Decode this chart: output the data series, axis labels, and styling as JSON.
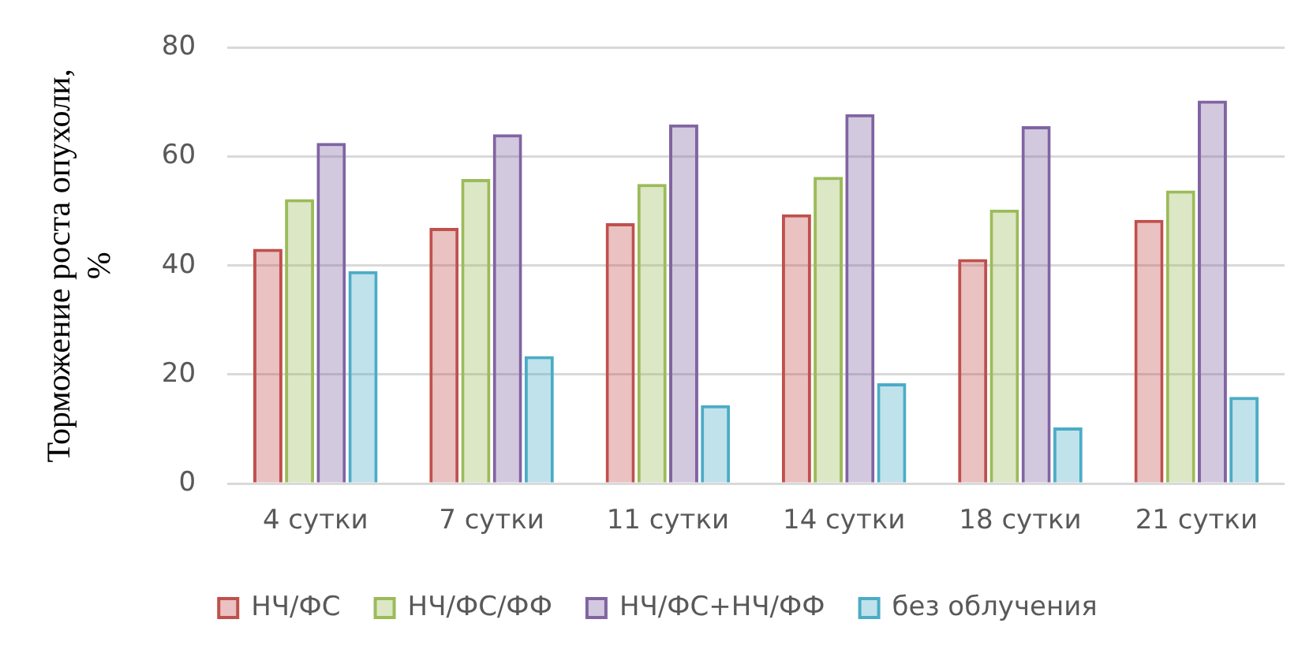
{
  "chart_data": {
    "type": "bar",
    "ylabel": "Торможение роста опухоли, %",
    "categories": [
      "4 сутки",
      "7 сутки",
      "11 сутки",
      "14 сутки",
      "18 сутки",
      "21 сутки"
    ],
    "series": [
      {
        "name": "НЧ/ФС",
        "color": "#c0504d",
        "values": [
          43.1,
          46.9,
          47.8,
          49.4,
          41.2,
          48.4
        ]
      },
      {
        "name": "НЧ/ФС/ФФ",
        "color": "#9bbb59",
        "values": [
          52.2,
          55.9,
          55,
          56.3,
          50.3,
          53.8
        ]
      },
      {
        "name": "НЧ/ФС+НЧ/ФФ",
        "color": "#8064a2",
        "values": [
          62.5,
          64.1,
          65.9,
          67.8,
          65.6,
          70.3
        ]
      },
      {
        "name": "без облучения",
        "color": "#4bacc6",
        "values": [
          39,
          23.4,
          14.4,
          18.4,
          10.3,
          15.9
        ]
      }
    ],
    "ylim": [
      0,
      80
    ],
    "yticks": [
      0,
      20,
      40,
      60,
      80
    ],
    "grid": "y",
    "legend": "bottom"
  }
}
